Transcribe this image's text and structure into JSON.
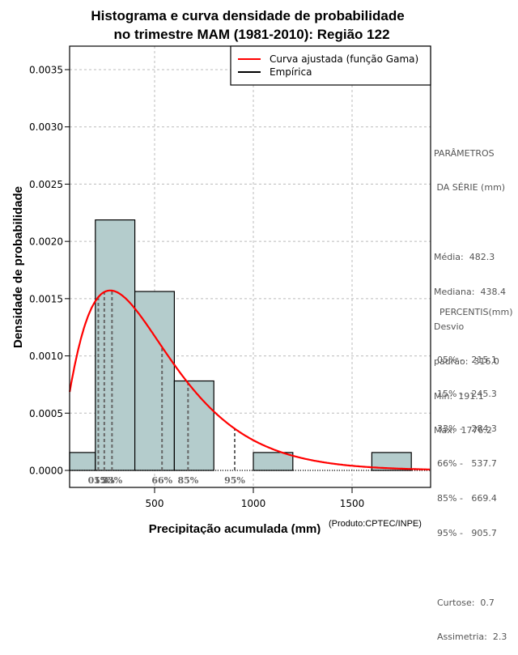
{
  "chart_data": {
    "type": "bar",
    "subtype": "histogram-with-density-curve",
    "title": "Histograma e curva densidade de probabilidade",
    "subtitle": "no trimestre MAM (1981-2010): Região 122",
    "xlabel": "Precipitação acumulada (mm)",
    "ylabel": "Densidade de probabilidade",
    "credit": "(Produto:CPTEC/INPE)",
    "xlim": [
      70,
      1900
    ],
    "ylim": [
      0,
      0.00375
    ],
    "x_ticks": [
      500,
      1000,
      1500
    ],
    "x_tick_labels": [
      "500",
      "1000",
      "1500"
    ],
    "y_ticks": [
      0,
      0.0005,
      0.001,
      0.0015,
      0.002,
      0.0025,
      0.003,
      0.0035
    ],
    "y_tick_labels": [
      "0.0000",
      "0.0005",
      "0.0010",
      "0.0015",
      "0.0020",
      "0.0025",
      "0.0030",
      "0.0035"
    ],
    "grid": true,
    "legend_position": "top-right",
    "legend": [
      {
        "label": "Curva ajustada (função Gama)",
        "color": "#ff0000"
      },
      {
        "label": "Empírica",
        "color": "#000000"
      }
    ],
    "bins": [
      {
        "from": 0,
        "to": 200,
        "density": 0.00015625
      },
      {
        "from": 200,
        "to": 400,
        "density": 0.0021875
      },
      {
        "from": 400,
        "to": 600,
        "density": 0.0015625
      },
      {
        "from": 600,
        "to": 800,
        "density": 0.00078125
      },
      {
        "from": 800,
        "to": 1000,
        "density": 0
      },
      {
        "from": 1000,
        "to": 1200,
        "density": 0.00015625
      },
      {
        "from": 1200,
        "to": 1400,
        "density": 0
      },
      {
        "from": 1400,
        "to": 1600,
        "density": 0
      },
      {
        "from": 1600,
        "to": 1800,
        "density": 0.00015625
      }
    ],
    "bar_fill": "#b4cccc",
    "curve": {
      "distribution": "gamma",
      "mean": 482.3,
      "sd": 316.0,
      "color": "#ff0000"
    },
    "percentile_lines": [
      {
        "label": "05%",
        "value": 215.1
      },
      {
        "label": "15%",
        "value": 245.3
      },
      {
        "label": "33%",
        "value": 284.3
      },
      {
        "label": "66%",
        "value": 537.7
      },
      {
        "label": "85%",
        "value": 669.4
      },
      {
        "label": "95%",
        "value": 905.7
      }
    ],
    "percentile_axis_labels": [
      {
        "text": "05%33%",
        "value": 245
      },
      {
        "text": "66%",
        "value": 537.7
      },
      {
        "text": "85%",
        "value": 669.4
      },
      {
        "text": "95%",
        "value": 905.7
      }
    ]
  },
  "side_panel": {
    "params_title_1": "PARÂMETROS",
    "params_title_2": " DA SÉRIE (mm)",
    "params": [
      "Média:  482.3",
      "Mediana:  438.4",
      "Desvio",
      "padrão:  316.0",
      "Mín:  191.1",
      "Máx:  1776.2"
    ],
    "percentis_title": "PERCENTIS(mm)",
    "percentis": [
      "05% -   215.1",
      "15% -   245.3",
      "33% -   284.3",
      "66% -   537.7",
      "85% -   669.4",
      "95% -   905.7"
    ],
    "stats": [
      "Curtose:  0.7",
      "Assimetria:  2.3"
    ]
  }
}
